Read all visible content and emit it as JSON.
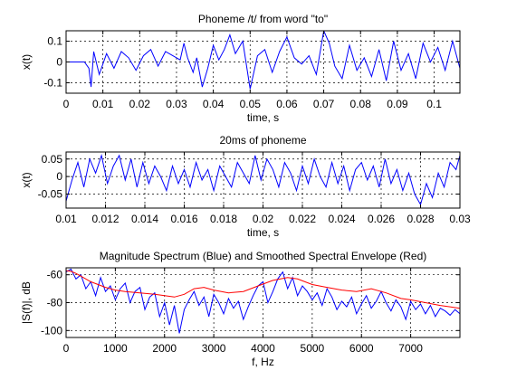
{
  "colors": {
    "signal": "#0000ff",
    "envelope": "#ff0000",
    "axes": "#000000",
    "grid": "#000000",
    "background": "#ffffff"
  },
  "chart_data": [
    {
      "type": "line",
      "title": "Phoneme /t/ from word \"to\"",
      "xlabel": "time, s",
      "ylabel": "x(t)",
      "xlim": [
        0,
        0.107
      ],
      "ylim": [
        -0.15,
        0.15
      ],
      "grid": true,
      "xticks": [
        0,
        0.01,
        0.02,
        0.03,
        0.04,
        0.05,
        0.06,
        0.07,
        0.08,
        0.09,
        0.1
      ],
      "xtick_labels": [
        "0",
        "0.01",
        "0.02",
        "0.03",
        "0.04",
        "0.05",
        "0.06",
        "0.07",
        "0.08",
        "0.09",
        "0.1"
      ],
      "yticks": [
        0.1,
        0,
        -0.1
      ],
      "ytick_labels": [
        "0.1",
        "0",
        "-0.1"
      ],
      "series": [
        {
          "color": "#0000ff",
          "x": [
            0,
            0.005,
            0.0062,
            0.0068,
            0.0075,
            0.009,
            0.011,
            0.013,
            0.015,
            0.017,
            0.019,
            0.021,
            0.023,
            0.025,
            0.027,
            0.029,
            0.031,
            0.032,
            0.033,
            0.0345,
            0.0355,
            0.037,
            0.0385,
            0.04,
            0.0415,
            0.043,
            0.0445,
            0.046,
            0.048,
            0.05,
            0.052,
            0.054,
            0.056,
            0.058,
            0.06,
            0.062,
            0.064,
            0.066,
            0.068,
            0.07,
            0.0715,
            0.073,
            0.075,
            0.077,
            0.079,
            0.081,
            0.083,
            0.085,
            0.087,
            0.089,
            0.091,
            0.093,
            0.095,
            0.097,
            0.099,
            0.101,
            0.103,
            0.105,
            0.107
          ],
          "y": [
            0,
            0,
            -0.03,
            -0.12,
            0.05,
            -0.06,
            0.04,
            -0.03,
            0.05,
            0.02,
            -0.04,
            0.03,
            0.06,
            -0.02,
            0.05,
            0.03,
            0.01,
            0.09,
            0.02,
            -0.05,
            0.02,
            -0.12,
            -0.03,
            0.08,
            0.01,
            0.06,
            0.13,
            0.04,
            0.1,
            -0.13,
            0.03,
            0.06,
            -0.05,
            0.05,
            0.12,
            0.02,
            -0.01,
            0.03,
            -0.06,
            0.15,
            0.09,
            -0.02,
            -0.08,
            0.08,
            -0.04,
            0.02,
            -0.07,
            0.06,
            -0.09,
            0.1,
            -0.04,
            0.04,
            -0.08,
            0.09,
            0.0,
            0.07,
            -0.04,
            0.1,
            -0.03
          ]
        }
      ]
    },
    {
      "type": "line",
      "title": "20ms of phoneme",
      "xlabel": "time, s",
      "ylabel": "x(t)",
      "xlim": [
        0.01,
        0.03
      ],
      "ylim": [
        -0.09,
        0.07
      ],
      "grid": true,
      "xticks": [
        0.01,
        0.012,
        0.014,
        0.016,
        0.018,
        0.02,
        0.022,
        0.024,
        0.026,
        0.028,
        0.03
      ],
      "xtick_labels": [
        "0.01",
        "0.012",
        "0.014",
        "0.016",
        "0.018",
        "0.02",
        "0.022",
        "0.024",
        "0.026",
        "0.028",
        "0.03"
      ],
      "yticks": [
        0.05,
        0,
        -0.05
      ],
      "ytick_labels": [
        "0.05",
        "0",
        "-0.05"
      ],
      "series": [
        {
          "color": "#0000ff",
          "x": [
            0.01,
            0.0103,
            0.0106,
            0.0109,
            0.0112,
            0.0115,
            0.0118,
            0.0121,
            0.0124,
            0.0127,
            0.013,
            0.0133,
            0.0136,
            0.0139,
            0.0142,
            0.0145,
            0.0148,
            0.0151,
            0.0154,
            0.0157,
            0.016,
            0.0163,
            0.0166,
            0.0169,
            0.0172,
            0.0175,
            0.0178,
            0.0181,
            0.0184,
            0.0187,
            0.019,
            0.0193,
            0.0196,
            0.0199,
            0.0202,
            0.0205,
            0.0208,
            0.0211,
            0.0214,
            0.0217,
            0.022,
            0.0223,
            0.0226,
            0.0229,
            0.0232,
            0.0235,
            0.0238,
            0.0241,
            0.0244,
            0.0247,
            0.025,
            0.0253,
            0.0256,
            0.0259,
            0.0262,
            0.0265,
            0.0268,
            0.0271,
            0.0274,
            0.0277,
            0.028,
            0.0283,
            0.0286,
            0.0289,
            0.0292,
            0.0295,
            0.0298,
            0.03
          ],
          "y": [
            -0.07,
            -0.01,
            0.04,
            -0.03,
            0.05,
            0.01,
            0.06,
            -0.02,
            0.03,
            0.06,
            -0.01,
            0.05,
            -0.03,
            0.04,
            -0.02,
            0.03,
            0.0,
            -0.04,
            0.03,
            -0.02,
            0.02,
            -0.03,
            0.04,
            -0.01,
            0.02,
            -0.04,
            0.03,
            0.0,
            -0.03,
            0.04,
            0.01,
            -0.02,
            0.06,
            -0.01,
            0.05,
            0.02,
            -0.03,
            0.04,
            0.01,
            -0.04,
            0.03,
            -0.02,
            0.05,
            0.0,
            -0.03,
            0.04,
            -0.02,
            0.03,
            -0.04,
            0.02,
            0.04,
            -0.01,
            0.03,
            -0.03,
            0.05,
            -0.02,
            0.02,
            -0.04,
            0.01,
            -0.05,
            -0.08,
            -0.02,
            -0.06,
            0.01,
            -0.03,
            0.04,
            0.02,
            0.06
          ]
        }
      ]
    },
    {
      "type": "line",
      "title": "Magnitude Spectrum (Blue) and Smoothed Spectral Envelope (Red)",
      "xlabel": "f, Hz",
      "ylabel": "|S(f)|, dB",
      "xlim": [
        0,
        8000
      ],
      "ylim": [
        -105,
        -55
      ],
      "grid": true,
      "xticks": [
        0,
        1000,
        2000,
        3000,
        4000,
        5000,
        6000,
        7000
      ],
      "xtick_labels": [
        "0",
        "1000",
        "2000",
        "3000",
        "4000",
        "5000",
        "6000",
        "7000"
      ],
      "yticks": [
        -60,
        -80,
        -100
      ],
      "ytick_labels": [
        "-60",
        "-80",
        "-100"
      ],
      "series": [
        {
          "color": "#0000ff",
          "x": [
            0,
            100,
            200,
            300,
            400,
            500,
            600,
            700,
            800,
            900,
            1000,
            1100,
            1200,
            1300,
            1400,
            1500,
            1600,
            1700,
            1800,
            1900,
            2000,
            2100,
            2200,
            2300,
            2400,
            2500,
            2600,
            2700,
            2800,
            2900,
            3000,
            3100,
            3200,
            3300,
            3400,
            3500,
            3600,
            3700,
            3800,
            3900,
            4000,
            4100,
            4200,
            4300,
            4400,
            4500,
            4600,
            4700,
            4800,
            4900,
            5000,
            5100,
            5200,
            5300,
            5400,
            5500,
            5600,
            5700,
            5800,
            5900,
            6000,
            6100,
            6200,
            6300,
            6400,
            6500,
            6600,
            6700,
            6800,
            6900,
            7000,
            7100,
            7200,
            7300,
            7400,
            7500,
            7600,
            7700,
            7800,
            7900,
            8000
          ],
          "y": [
            -58,
            -56,
            -63,
            -60,
            -70,
            -65,
            -75,
            -62,
            -72,
            -68,
            -78,
            -70,
            -66,
            -80,
            -72,
            -69,
            -85,
            -76,
            -73,
            -90,
            -80,
            -96,
            -82,
            -102,
            -85,
            -78,
            -72,
            -82,
            -76,
            -90,
            -74,
            -80,
            -88,
            -77,
            -84,
            -79,
            -92,
            -83,
            -75,
            -68,
            -65,
            -80,
            -72,
            -63,
            -58,
            -70,
            -62,
            -75,
            -68,
            -72,
            -78,
            -73,
            -82,
            -70,
            -76,
            -85,
            -79,
            -83,
            -76,
            -88,
            -81,
            -75,
            -84,
            -79,
            -72,
            -80,
            -86,
            -78,
            -83,
            -92,
            -79,
            -85,
            -81,
            -88,
            -82,
            -90,
            -84,
            -86,
            -89,
            -85,
            -88
          ]
        },
        {
          "color": "#ff0000",
          "x": [
            0,
            100,
            200,
            300,
            500,
            800,
            1000,
            1200,
            1500,
            1800,
            2000,
            2200,
            2400,
            2600,
            2800,
            3000,
            3300,
            3600,
            3900,
            4200,
            4500,
            4700,
            5000,
            5300,
            5600,
            5900,
            6200,
            6500,
            6800,
            7000,
            7300,
            7600,
            7800,
            8000
          ],
          "y": [
            -57,
            -57.5,
            -59,
            -61,
            -65,
            -69,
            -71,
            -72,
            -73,
            -74,
            -75,
            -76,
            -74,
            -70,
            -69,
            -71,
            -73,
            -72,
            -68,
            -64,
            -62,
            -63,
            -67,
            -69,
            -71,
            -72,
            -70,
            -73,
            -77,
            -78,
            -80,
            -82,
            -83,
            -84
          ]
        }
      ]
    }
  ]
}
